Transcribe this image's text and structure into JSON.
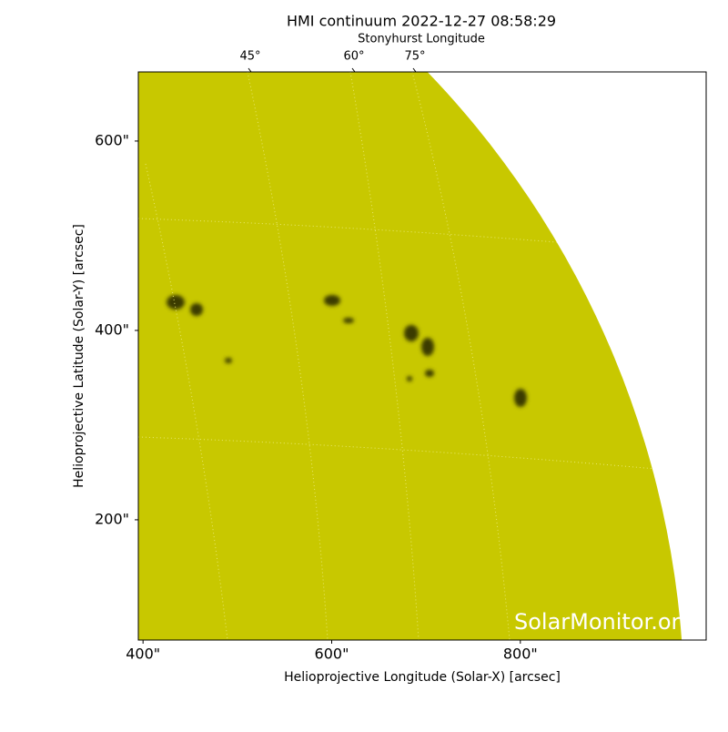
{
  "chart_data": {
    "type": "image",
    "title": "HMI continuum 2022-12-27 08:58:29",
    "top_axis_label": "Stonyhurst Longitude",
    "top_ticks": [
      {
        "value": 45,
        "label": "45°"
      },
      {
        "value": 60,
        "label": "60°"
      },
      {
        "value": 75,
        "label": "75°"
      }
    ],
    "x_label": "Helioprojective Longitude (Solar-X) [arcsec]",
    "y_label": "Helioprojective Latitude (Solar-Y) [arcsec]",
    "xlim": [
      395,
      997
    ],
    "ylim": [
      73,
      673
    ],
    "xticks": [
      {
        "value": 400,
        "label": "400\""
      },
      {
        "value": 600,
        "label": "600\""
      },
      {
        "value": 800,
        "label": "800\""
      }
    ],
    "yticks": [
      {
        "value": 200,
        "label": "200\""
      },
      {
        "value": 400,
        "label": "400\""
      },
      {
        "value": 600,
        "label": "600\""
      }
    ],
    "color": "#c8c800",
    "watermark": "SolarMonitor.org"
  }
}
